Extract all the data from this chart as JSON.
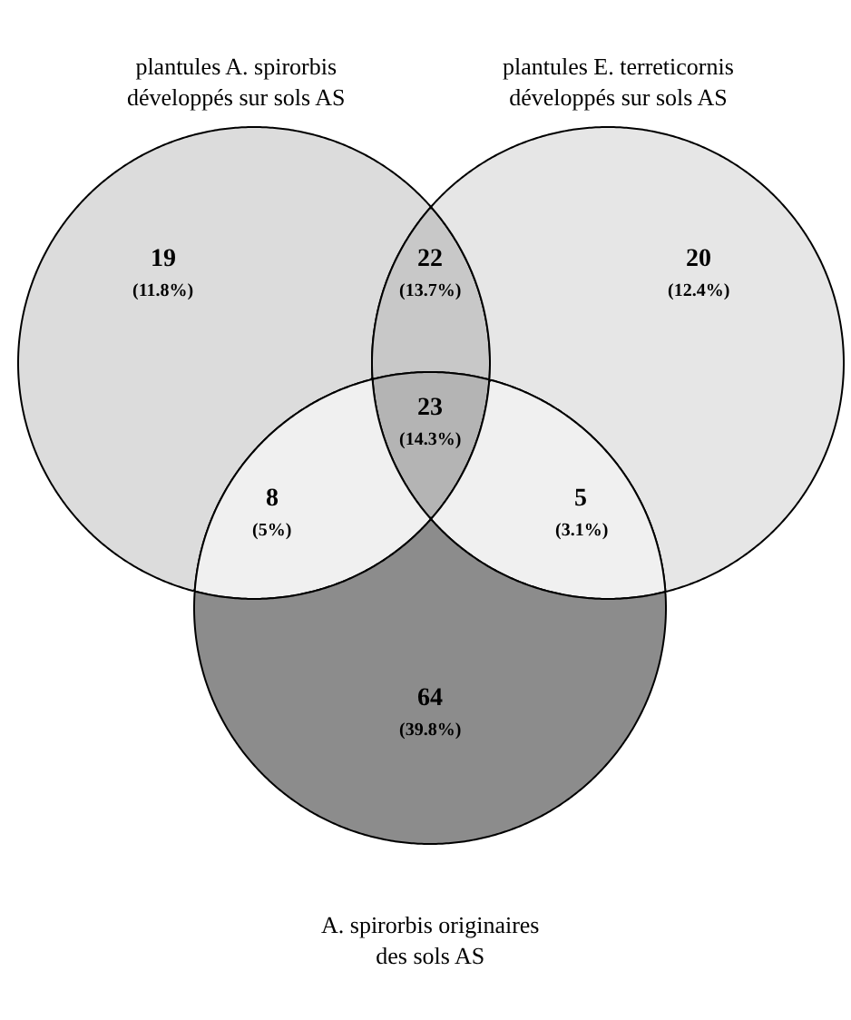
{
  "chart_data": {
    "type": "other",
    "annotations": [
      "plantules A. spirorbis\ndéveloppés sur sols AS",
      "plantules E. terreticornis\ndéveloppés sur sols AS",
      "A. spirorbis originaires\ndes sols AS",
      "(11.8%)",
      "(13.7%)",
      "(12.4%)",
      "(14.3%)",
      "(5%)",
      "(3.1%)",
      "(39.8%)"
    ],
    "data_labels": true,
    "categories": [
      null,
      null,
      null,
      null,
      null,
      null,
      null
    ],
    "values": [
      19,
      22,
      20,
      23,
      8,
      5,
      64
    ],
    "colors": [
      "#dcdcdc",
      "#c8c8c8",
      "#e6e6e6",
      "#b4b4b4",
      "#f0f0f0",
      "#f0f0f0",
      "#8c8c8c"
    ]
  }
}
